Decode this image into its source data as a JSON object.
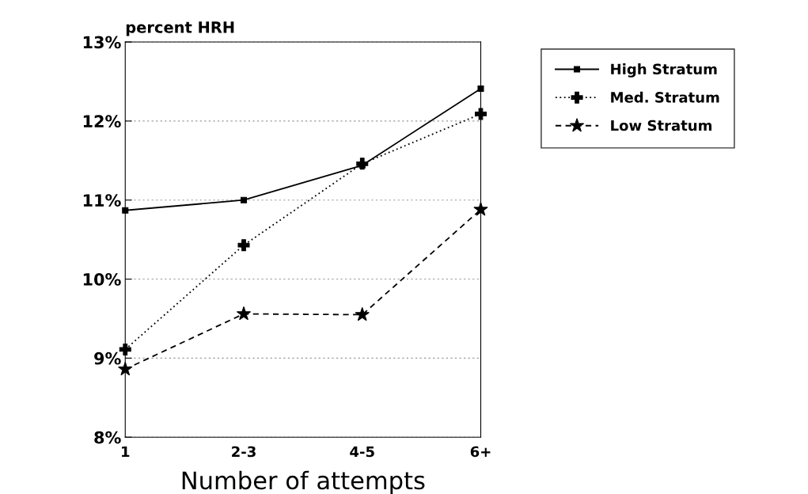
{
  "chart_data": {
    "type": "line",
    "ylabel": "percent HRH",
    "xlabel": "Number of attempts",
    "categories": [
      "1",
      "2-3",
      "4-5",
      "6+"
    ],
    "series": [
      {
        "name": "High Stratum",
        "color": "#000000",
        "marker": "square",
        "line_style": "solid",
        "values": [
          10.87,
          11.0,
          11.44,
          12.41
        ]
      },
      {
        "name": "Med. Stratum",
        "color": "#000000",
        "marker": "cross",
        "line_style": "dotted",
        "values": [
          9.11,
          10.43,
          11.46,
          12.09
        ]
      },
      {
        "name": "Low Stratum",
        "color": "#000000",
        "marker": "star",
        "line_style": "dashed",
        "values": [
          8.86,
          9.56,
          9.55,
          10.88
        ]
      }
    ],
    "ylim": [
      8,
      13
    ],
    "yticks": [
      {
        "value": 8,
        "label": "8%"
      },
      {
        "value": 9,
        "label": "9%"
      },
      {
        "value": 10,
        "label": "10%"
      },
      {
        "value": 11,
        "label": "11%"
      },
      {
        "value": 12,
        "label": "12%"
      },
      {
        "value": 13,
        "label": "13%"
      }
    ],
    "grid": "y",
    "legend": "top right"
  }
}
